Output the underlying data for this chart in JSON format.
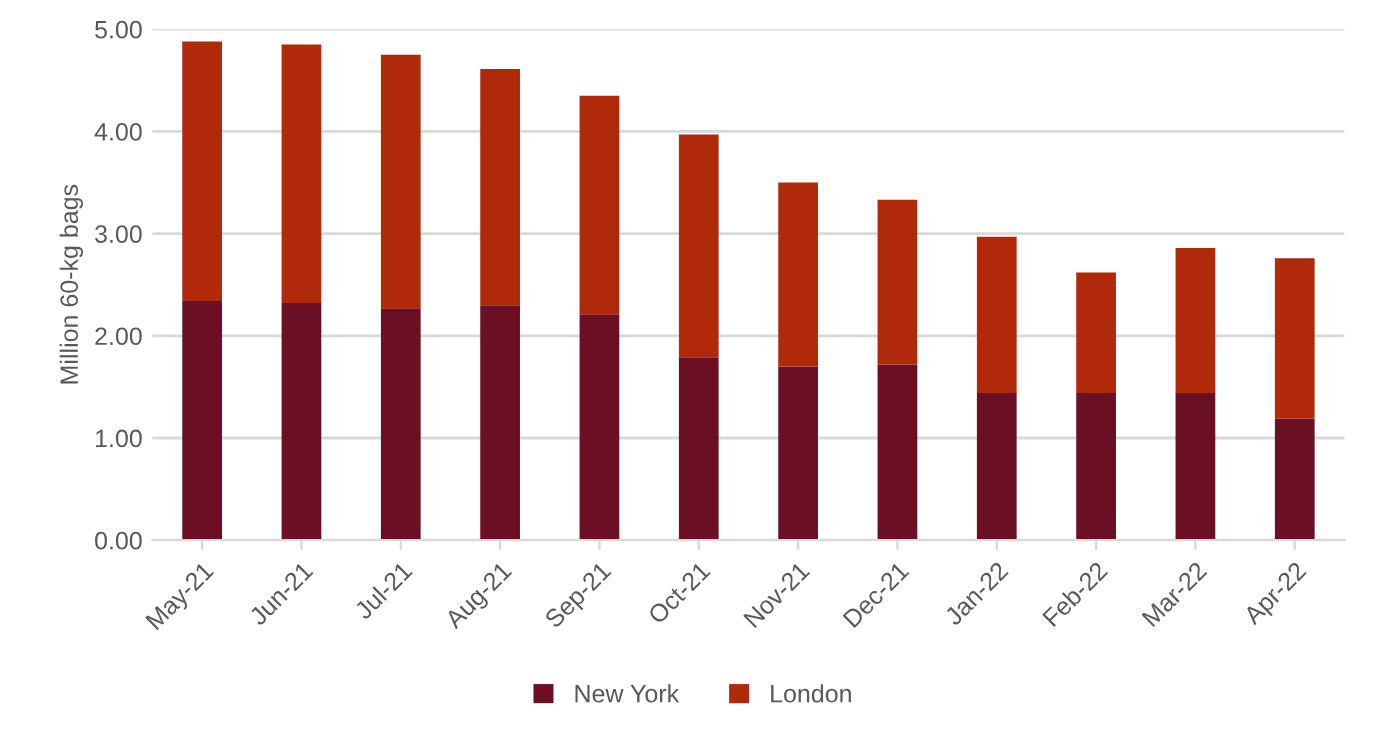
{
  "chart_data": {
    "type": "bar",
    "stacked": true,
    "ylabel": "Million 60-kg bags",
    "categories": [
      "May-21",
      "Jun-21",
      "Jul-21",
      "Aug-21",
      "Sep-21",
      "Oct-21",
      "Nov-21",
      "Dec-21",
      "Jan-22",
      "Feb-22",
      "Mar-22",
      "Apr-22"
    ],
    "series": [
      {
        "name": "New York",
        "color": "#6b0f24",
        "values": [
          2.34,
          2.32,
          2.27,
          2.3,
          2.21,
          1.79,
          1.7,
          1.72,
          1.44,
          1.44,
          1.44,
          1.19
        ]
      },
      {
        "name": "London",
        "color": "#b0290b",
        "values": [
          2.54,
          2.53,
          2.48,
          2.31,
          2.14,
          2.18,
          1.8,
          1.61,
          1.53,
          1.18,
          1.42,
          1.57
        ]
      }
    ],
    "ylim": [
      0,
      5
    ],
    "yticks": [
      {
        "value": 0,
        "label": "0.00"
      },
      {
        "value": 1,
        "label": "1.00"
      },
      {
        "value": 2,
        "label": "2.00"
      },
      {
        "value": 3,
        "label": "3.00"
      },
      {
        "value": 4,
        "label": "4.00"
      },
      {
        "value": 5,
        "label": "5.00"
      }
    ],
    "grid": "y",
    "legend": "bottom"
  }
}
